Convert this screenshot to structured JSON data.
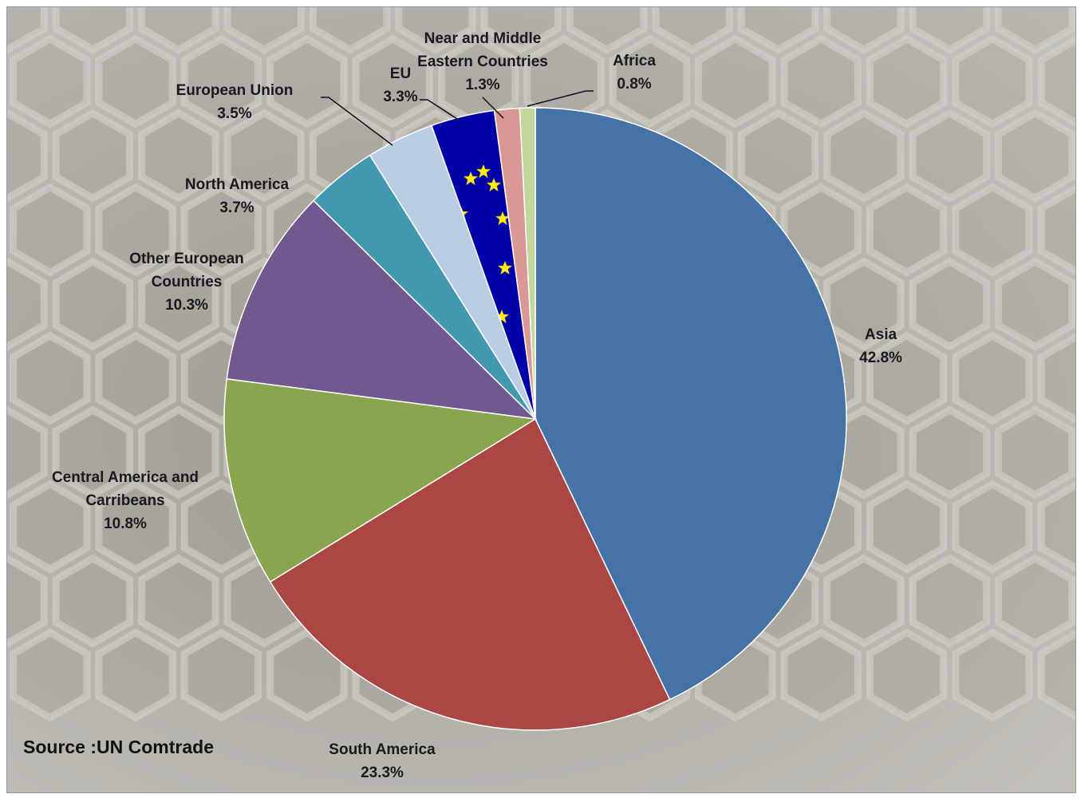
{
  "chart_data": {
    "type": "pie",
    "title": "",
    "categories": [
      "Asia",
      "South America",
      "Central America and Carribeans",
      "Other European Countries",
      "North America",
      "European Union",
      "EU",
      "Near and Middle Eastern Countries",
      "Africa"
    ],
    "label_lines": [
      [
        "Asia"
      ],
      [
        "South America"
      ],
      [
        "Central America and",
        "Carribeans"
      ],
      [
        "Other European",
        "Countries"
      ],
      [
        "North America"
      ],
      [
        "European Union"
      ],
      [
        "EU"
      ],
      [
        "Near and Middle",
        "Eastern Countries"
      ],
      [
        "Africa"
      ]
    ],
    "values": [
      42.8,
      23.3,
      10.8,
      10.3,
      3.7,
      3.5,
      3.3,
      1.3,
      0.8
    ],
    "value_labels": [
      "42.8%",
      "23.3%",
      "10.8%",
      "10.3%",
      "3.7%",
      "3.5%",
      "3.3%",
      "1.3%",
      "0.8%"
    ],
    "colors": [
      "#4573a7",
      "#aa4644",
      "#89a54e",
      "#71588f",
      "#4198af",
      "#b9cde5",
      "#0000a8",
      "#d99795",
      "#c3d69b"
    ],
    "slice_patterns": [
      "",
      "",
      "",
      "",
      "",
      "",
      "eu-stars",
      "",
      ""
    ],
    "legend": "none",
    "start_angle": "12 o'clock, clockwise"
  },
  "source": "Source :UN Comtrade"
}
